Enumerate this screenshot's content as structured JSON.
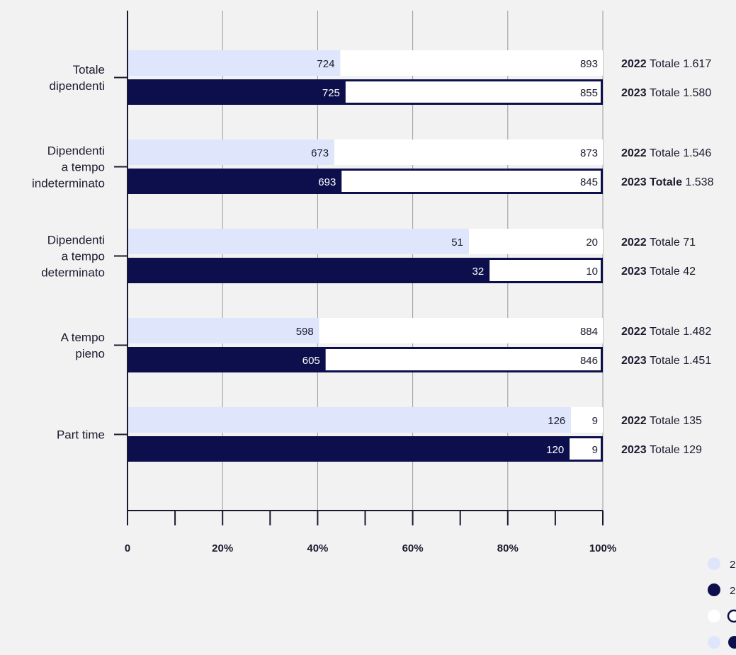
{
  "chart_data": {
    "type": "bar",
    "orientation": "horizontal",
    "stacked": "percent",
    "categories": [
      [
        "Totale",
        "dipendenti"
      ],
      [
        "Dipendenti",
        "a tempo",
        "indeterminato"
      ],
      [
        "Dipendenti",
        "a tempo",
        "determinato"
      ],
      [
        "A tempo",
        "pieno"
      ],
      [
        "Part time"
      ]
    ],
    "years": [
      "2022",
      "2023"
    ],
    "total_word": "Totale",
    "data": [
      {
        "first": [
          724,
          725
        ],
        "second": [
          893,
          855
        ],
        "totals": [
          "1.617",
          "1.580"
        ]
      },
      {
        "first": [
          673,
          693
        ],
        "second": [
          873,
          845
        ],
        "totals": [
          "1.546",
          "1.538"
        ]
      },
      {
        "first": [
          51,
          32
        ],
        "second": [
          20,
          10
        ],
        "totals": [
          "71",
          "42"
        ]
      },
      {
        "first": [
          598,
          605
        ],
        "second": [
          884,
          846
        ],
        "totals": [
          "1.482",
          "1.451"
        ]
      },
      {
        "first": [
          126,
          120
        ],
        "second": [
          9,
          9
        ],
        "totals": [
          "135",
          "129"
        ]
      }
    ],
    "bold_total_word": [
      [
        1,
        1
      ]
    ],
    "x_ticks": [
      "0",
      "20%",
      "40%",
      "60%",
      "80%",
      "100%"
    ],
    "x_range": [
      0,
      100
    ],
    "grid": true,
    "legend_placement": "bottom-right",
    "legend_items": [
      "2",
      "2",
      "",
      ""
    ],
    "colors": {
      "year_2022": "#dfe6fb",
      "year_2023": "#0c0f4c",
      "second_fill": "#ffffff",
      "outline_2023": "#0c0f4c",
      "grid": "#9a9a9a",
      "axis": "#1a1a2e",
      "background": "#f2f2f2"
    }
  }
}
